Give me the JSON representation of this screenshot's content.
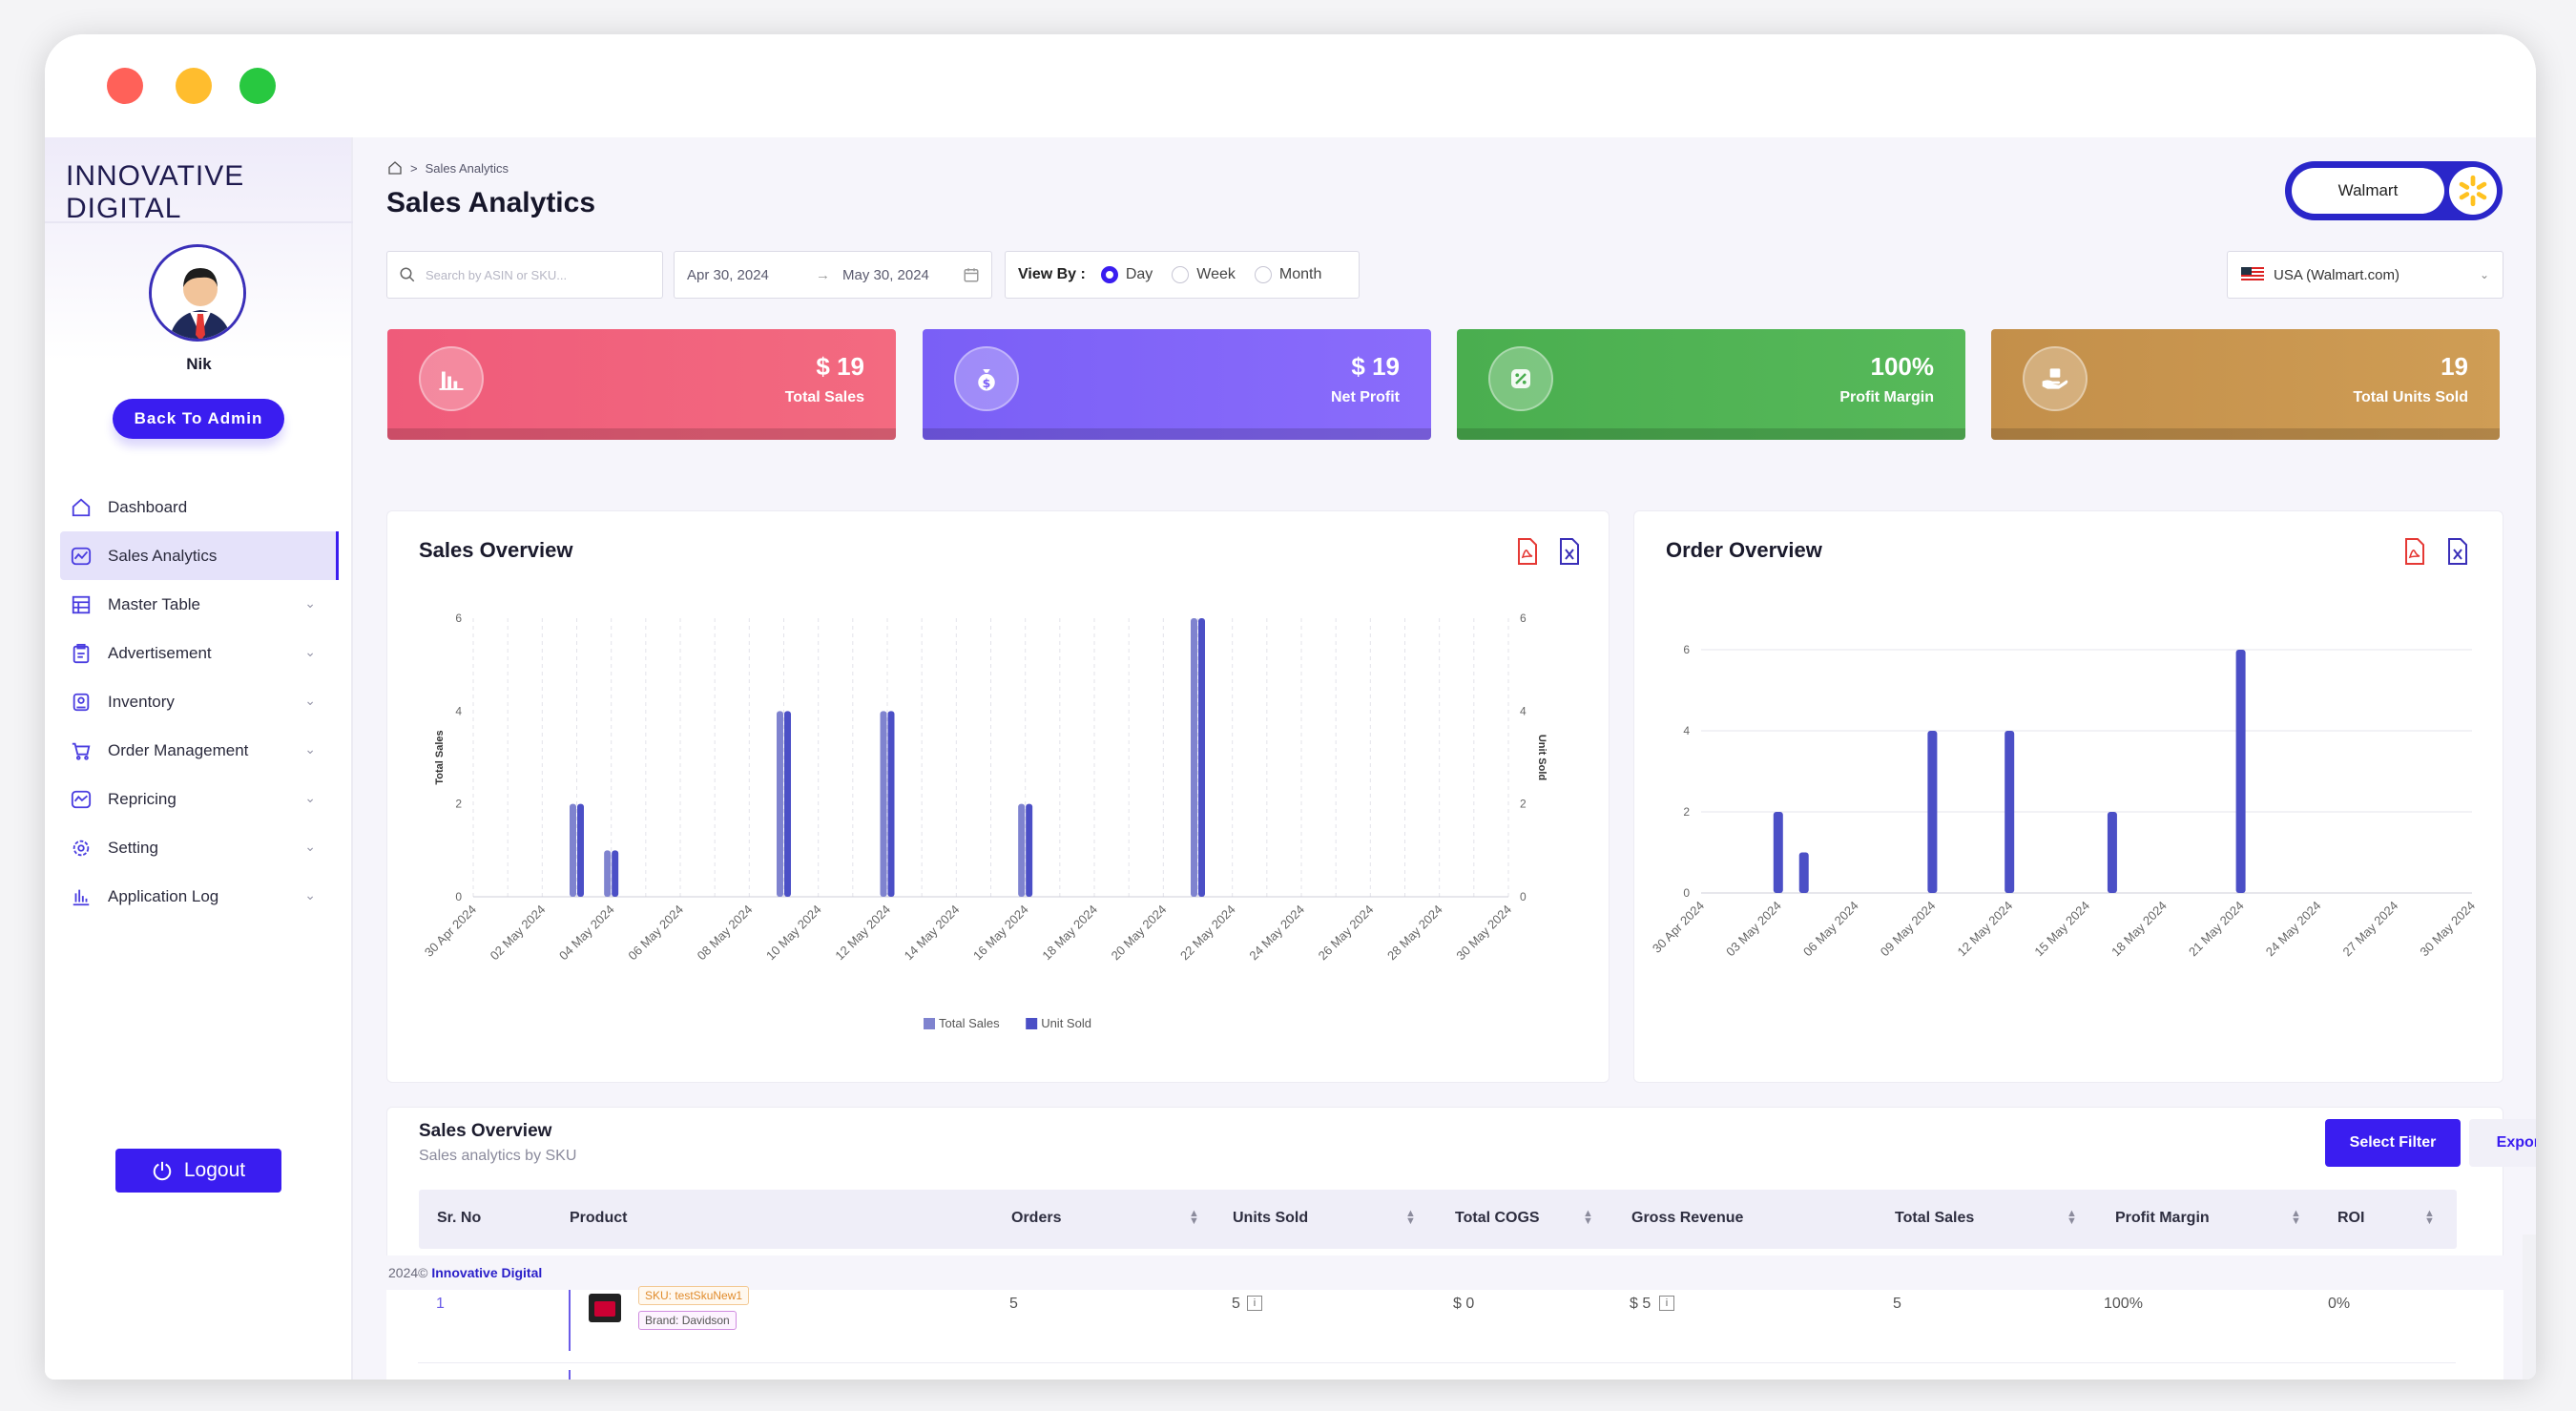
{
  "app": {
    "logo": "INNOVATIVE DIGITAL"
  },
  "sidebar": {
    "username": "Nik",
    "back_admin": "Back To Admin",
    "logout": "Logout",
    "items": [
      {
        "label": "Dashboard",
        "icon": "home-icon"
      },
      {
        "label": "Sales Analytics",
        "icon": "chart-icon"
      },
      {
        "label": "Master Table",
        "icon": "table-icon"
      },
      {
        "label": "Advertisement",
        "icon": "clipboard-icon"
      },
      {
        "label": "Inventory",
        "icon": "box-icon"
      },
      {
        "label": "Order Management",
        "icon": "cart-icon"
      },
      {
        "label": "Repricing",
        "icon": "trend-icon"
      },
      {
        "label": "Setting",
        "icon": "gear-icon"
      },
      {
        "label": "Application Log",
        "icon": "bars-icon"
      }
    ]
  },
  "header": {
    "breadcrumb": "Sales Analytics",
    "title": "Sales Analytics",
    "marketplace": "Walmart"
  },
  "filters": {
    "search_placeholder": "Search by ASIN or SKU...",
    "date_from": "Apr 30, 2024",
    "date_to": "May 30, 2024",
    "view_by_label": "View By :",
    "view_options": [
      "Day",
      "Week",
      "Month"
    ],
    "view_selected": "Day",
    "country": "USA (Walmart.com)"
  },
  "kpis": [
    {
      "value": "$ 19",
      "label": "Total Sales",
      "color": "#ef5b7a"
    },
    {
      "value": "$ 19",
      "label": "Net Profit",
      "color": "#7a5ff6"
    },
    {
      "value": "100%",
      "label": "Profit Margin",
      "color": "#4aae4f"
    },
    {
      "value": "19",
      "label": "Total Units Sold",
      "color": "#c38f4a"
    }
  ],
  "sales_overview": {
    "title": "Sales Overview"
  },
  "order_overview": {
    "title": "Order Overview"
  },
  "chart_data": [
    {
      "type": "bar",
      "title": "Sales Overview",
      "ylabel": "Total Sales",
      "y2label": "Unit Sold",
      "ylim": [
        0,
        6
      ],
      "y_ticks": [
        0,
        2,
        4,
        6
      ],
      "categories": [
        "30 Apr 2024",
        "01 May 2024",
        "02 May 2024",
        "03 May 2024",
        "04 May 2024",
        "05 May 2024",
        "06 May 2024",
        "07 May 2024",
        "08 May 2024",
        "09 May 2024",
        "10 May 2024",
        "11 May 2024",
        "12 May 2024",
        "13 May 2024",
        "14 May 2024",
        "15 May 2024",
        "16 May 2024",
        "17 May 2024",
        "18 May 2024",
        "19 May 2024",
        "20 May 2024",
        "21 May 2024",
        "22 May 2024",
        "23 May 2024",
        "24 May 2024",
        "25 May 2024",
        "26 May 2024",
        "27 May 2024",
        "28 May 2024",
        "29 May 2024",
        "30 May 2024"
      ],
      "tick_labels": [
        "30 Apr 2024",
        "02 May 2024",
        "04 May 2024",
        "06 May 2024",
        "08 May 2024",
        "10 May 2024",
        "12 May 2024",
        "14 May 2024",
        "16 May 2024",
        "18 May 2024",
        "20 May 2024",
        "22 May 2024",
        "24 May 2024",
        "26 May 2024",
        "28 May 2024",
        "30 May 2024"
      ],
      "series": [
        {
          "name": "Total Sales",
          "color": "#7f83cf",
          "values": [
            0,
            0,
            0,
            2,
            1,
            0,
            0,
            0,
            0,
            4,
            0,
            0,
            4,
            0,
            0,
            0,
            2,
            0,
            0,
            0,
            0,
            6,
            0,
            0,
            0,
            0,
            0,
            0,
            0,
            0,
            0
          ]
        },
        {
          "name": "Unit Sold",
          "color": "#4b4fc6",
          "values": [
            0,
            0,
            0,
            2,
            1,
            0,
            0,
            0,
            0,
            4,
            0,
            0,
            4,
            0,
            0,
            0,
            2,
            0,
            0,
            0,
            0,
            6,
            0,
            0,
            0,
            0,
            0,
            0,
            0,
            0,
            0
          ]
        }
      ],
      "legend": "bottom"
    },
    {
      "type": "bar",
      "title": "Order Overview",
      "ylim": [
        0,
        6
      ],
      "y_ticks": [
        0,
        2,
        4,
        6
      ],
      "categories": [
        "30 Apr 2024",
        "01 May 2024",
        "02 May 2024",
        "03 May 2024",
        "04 May 2024",
        "05 May 2024",
        "06 May 2024",
        "07 May 2024",
        "08 May 2024",
        "09 May 2024",
        "10 May 2024",
        "11 May 2024",
        "12 May 2024",
        "13 May 2024",
        "14 May 2024",
        "15 May 2024",
        "16 May 2024",
        "17 May 2024",
        "18 May 2024",
        "19 May 2024",
        "20 May 2024",
        "21 May 2024",
        "22 May 2024",
        "23 May 2024",
        "24 May 2024",
        "25 May 2024",
        "26 May 2024",
        "27 May 2024",
        "28 May 2024",
        "29 May 2024",
        "30 May 2024"
      ],
      "tick_labels": [
        "30 Apr 2024",
        "03 May 2024",
        "06 May 2024",
        "09 May 2024",
        "12 May 2024",
        "15 May 2024",
        "18 May 2024",
        "21 May 2024",
        "24 May 2024",
        "27 May 2024",
        "30 May 2024"
      ],
      "series": [
        {
          "color": "#4b4fc6",
          "values": [
            0,
            0,
            0,
            2,
            1,
            0,
            0,
            0,
            0,
            4,
            0,
            0,
            4,
            0,
            0,
            0,
            2,
            0,
            0,
            0,
            0,
            6,
            0,
            0,
            0,
            0,
            0,
            0,
            0,
            0,
            0
          ]
        }
      ]
    }
  ],
  "table": {
    "title": "Sales Overview",
    "subtitle": "Sales analytics by SKU",
    "select_filter": "Select Filter",
    "export": "Export",
    "columns": [
      "Sr. No",
      "Product",
      "Orders",
      "Units Sold",
      "Total COGS",
      "Gross Revenue",
      "Total Sales",
      "Profit Margin",
      "ROI"
    ],
    "rows": [
      {
        "sr": "1",
        "sku": "SKU: testSkuNew1",
        "brand": "Brand: Davidson",
        "orders": "5",
        "units": "5",
        "cogs": "$ 0",
        "gross": "$ 5",
        "sales": "5",
        "margin": "100%",
        "roi": "0%"
      }
    ]
  },
  "footer": {
    "year": "2024©",
    "company": "Innovative Digital"
  }
}
